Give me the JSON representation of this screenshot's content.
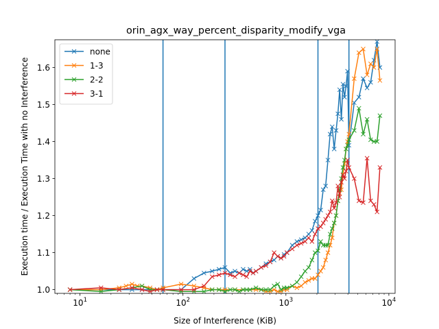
{
  "chart_data": {
    "type": "line",
    "title": "orin_agx_way_percent_disparity_modify_vga",
    "xlabel": "Size of Interference (KiB)",
    "ylabel": "Execution time / Execution Time with no Interference",
    "xscale": "log",
    "xlim": [
      5.7,
      11500
    ],
    "ylim": [
      0.99,
      1.675
    ],
    "x_ticks": [
      {
        "value": 10,
        "base": "10",
        "exp": "1"
      },
      {
        "value": 100,
        "base": "10",
        "exp": "2"
      },
      {
        "value": 1000,
        "base": "10",
        "exp": "3"
      },
      {
        "value": 10000,
        "base": "10",
        "exp": "4"
      }
    ],
    "y_ticks": [
      {
        "value": 1.0,
        "label": "1.0"
      },
      {
        "value": 1.1,
        "label": "1.1"
      },
      {
        "value": 1.2,
        "label": "1.2"
      },
      {
        "value": 1.3,
        "label": "1.3"
      },
      {
        "value": 1.4,
        "label": "1.4"
      },
      {
        "value": 1.5,
        "label": "1.5"
      },
      {
        "value": 1.6,
        "label": "1.6"
      }
    ],
    "grid": false,
    "legend_position": "top-left",
    "vertical_lines": [
      64,
      256,
      2048,
      4096
    ],
    "vertical_line_color": "#1f77b4",
    "marker": "x",
    "series": [
      {
        "name": "none",
        "color": "#1f77b4",
        "x": [
          8,
          16,
          24,
          32,
          40,
          48,
          56,
          64,
          96,
          128,
          160,
          192,
          224,
          256,
          288,
          320,
          352,
          384,
          416,
          448,
          480,
          512,
          576,
          640,
          704,
          768,
          832,
          896,
          960,
          1024,
          1152,
          1280,
          1408,
          1536,
          1664,
          1792,
          1920,
          2048,
          2176,
          2304,
          2432,
          2560,
          2688,
          2816,
          2944,
          3072,
          3200,
          3328,
          3456,
          3584,
          3712,
          3840,
          3968,
          4096,
          4608,
          5120,
          5632,
          6144,
          6656,
          7168,
          7680,
          8192
        ],
        "y": [
          1.0,
          1.0,
          1.0,
          1.0,
          1.0,
          1.0,
          1.0,
          1.0,
          1.0,
          1.03,
          1.045,
          1.05,
          1.055,
          1.06,
          1.045,
          1.05,
          1.045,
          1.055,
          1.05,
          1.055,
          1.045,
          1.05,
          1.06,
          1.07,
          1.075,
          1.08,
          1.09,
          1.085,
          1.095,
          1.1,
          1.12,
          1.13,
          1.135,
          1.14,
          1.15,
          1.16,
          1.185,
          1.2,
          1.215,
          1.27,
          1.28,
          1.35,
          1.42,
          1.44,
          1.38,
          1.43,
          1.475,
          1.54,
          1.46,
          1.555,
          1.52,
          1.55,
          1.59,
          1.39,
          1.505,
          1.52,
          1.57,
          1.545,
          1.56,
          1.62,
          1.67,
          1.6
        ]
      },
      {
        "name": "1-3",
        "color": "#ff7f0e",
        "x": [
          8,
          16,
          24,
          28,
          32,
          36,
          40,
          48,
          56,
          64,
          96,
          128,
          160,
          192,
          224,
          256,
          320,
          384,
          448,
          512,
          576,
          640,
          704,
          768,
          832,
          896,
          960,
          1024,
          1152,
          1280,
          1408,
          1536,
          1664,
          1792,
          1920,
          2048,
          2176,
          2304,
          2432,
          2560,
          2688,
          2816,
          2944,
          3072,
          3200,
          3328,
          3456,
          3584,
          3712,
          3840,
          3968,
          4096,
          4608,
          5120,
          5632,
          6144,
          6656,
          7168,
          7680,
          8192
        ],
        "y": [
          1.0,
          1.0,
          1.005,
          1.01,
          1.015,
          1.01,
          1.01,
          1.005,
          1.0,
          1.005,
          1.015,
          1.01,
          1.005,
          1.0,
          1.0,
          1.0,
          1.0,
          1.0,
          1.0,
          1.0,
          1.0,
          0.995,
          0.995,
          1.0,
          0.995,
          0.995,
          1.0,
          1.0,
          1.01,
          1.005,
          1.01,
          1.02,
          1.025,
          1.03,
          1.03,
          1.04,
          1.05,
          1.06,
          1.08,
          1.1,
          1.12,
          1.14,
          1.18,
          1.2,
          1.24,
          1.26,
          1.27,
          1.31,
          1.34,
          1.38,
          1.4,
          1.42,
          1.57,
          1.64,
          1.65,
          1.58,
          1.61,
          1.6,
          1.65,
          1.565
        ]
      },
      {
        "name": "2-2",
        "color": "#2ca02c",
        "x": [
          8,
          16,
          24,
          32,
          40,
          48,
          56,
          64,
          96,
          128,
          160,
          192,
          224,
          256,
          288,
          320,
          352,
          384,
          416,
          448,
          512,
          576,
          640,
          704,
          768,
          832,
          896,
          960,
          1024,
          1152,
          1280,
          1408,
          1536,
          1664,
          1792,
          1920,
          2048,
          2176,
          2304,
          2432,
          2560,
          2688,
          2816,
          2944,
          3072,
          3200,
          3328,
          3456,
          3584,
          3712,
          3840,
          3968,
          4096,
          4608,
          5120,
          5632,
          6144,
          6656,
          7168,
          7680,
          8192
        ],
        "y": [
          1.0,
          0.995,
          1.0,
          1.005,
          1.01,
          1.0,
          1.0,
          1.0,
          0.995,
          0.995,
          0.995,
          1.0,
          1.0,
          0.995,
          1.0,
          1.0,
          0.995,
          1.0,
          1.0,
          1.0,
          1.005,
          1.0,
          1.0,
          1.0,
          1.01,
          1.015,
          1.0,
          1.005,
          1.005,
          1.01,
          1.02,
          1.035,
          1.05,
          1.06,
          1.08,
          1.1,
          1.105,
          1.13,
          1.12,
          1.12,
          1.12,
          1.15,
          1.165,
          1.18,
          1.2,
          1.24,
          1.27,
          1.3,
          1.33,
          1.35,
          1.38,
          1.39,
          1.405,
          1.43,
          1.49,
          1.42,
          1.46,
          1.405,
          1.4,
          1.4,
          1.47
        ]
      },
      {
        "name": "3-1",
        "color": "#d62728",
        "x": [
          8,
          16,
          24,
          32,
          40,
          48,
          56,
          64,
          96,
          128,
          160,
          192,
          224,
          256,
          288,
          320,
          352,
          384,
          416,
          448,
          480,
          512,
          576,
          640,
          704,
          768,
          832,
          896,
          960,
          1024,
          1152,
          1280,
          1408,
          1536,
          1664,
          1792,
          1920,
          2048,
          2176,
          2304,
          2432,
          2560,
          2688,
          2816,
          2944,
          3072,
          3200,
          3328,
          3456,
          3584,
          3712,
          3840,
          3968,
          4096,
          4608,
          5120,
          5632,
          6144,
          6656,
          7168,
          7680,
          8192
        ],
        "y": [
          1.0,
          1.005,
          1.0,
          1.005,
          1.0,
          0.995,
          1.0,
          1.0,
          1.0,
          1.0,
          1.01,
          1.035,
          1.04,
          1.045,
          1.04,
          1.035,
          1.045,
          1.04,
          1.035,
          1.05,
          1.045,
          1.05,
          1.06,
          1.065,
          1.075,
          1.1,
          1.09,
          1.085,
          1.09,
          1.1,
          1.11,
          1.12,
          1.125,
          1.13,
          1.14,
          1.13,
          1.15,
          1.165,
          1.17,
          1.18,
          1.19,
          1.2,
          1.21,
          1.24,
          1.22,
          1.235,
          1.28,
          1.25,
          1.29,
          1.31,
          1.3,
          1.32,
          1.35,
          1.33,
          1.3,
          1.24,
          1.235,
          1.355,
          1.24,
          1.23,
          1.21,
          1.33
        ]
      }
    ]
  }
}
